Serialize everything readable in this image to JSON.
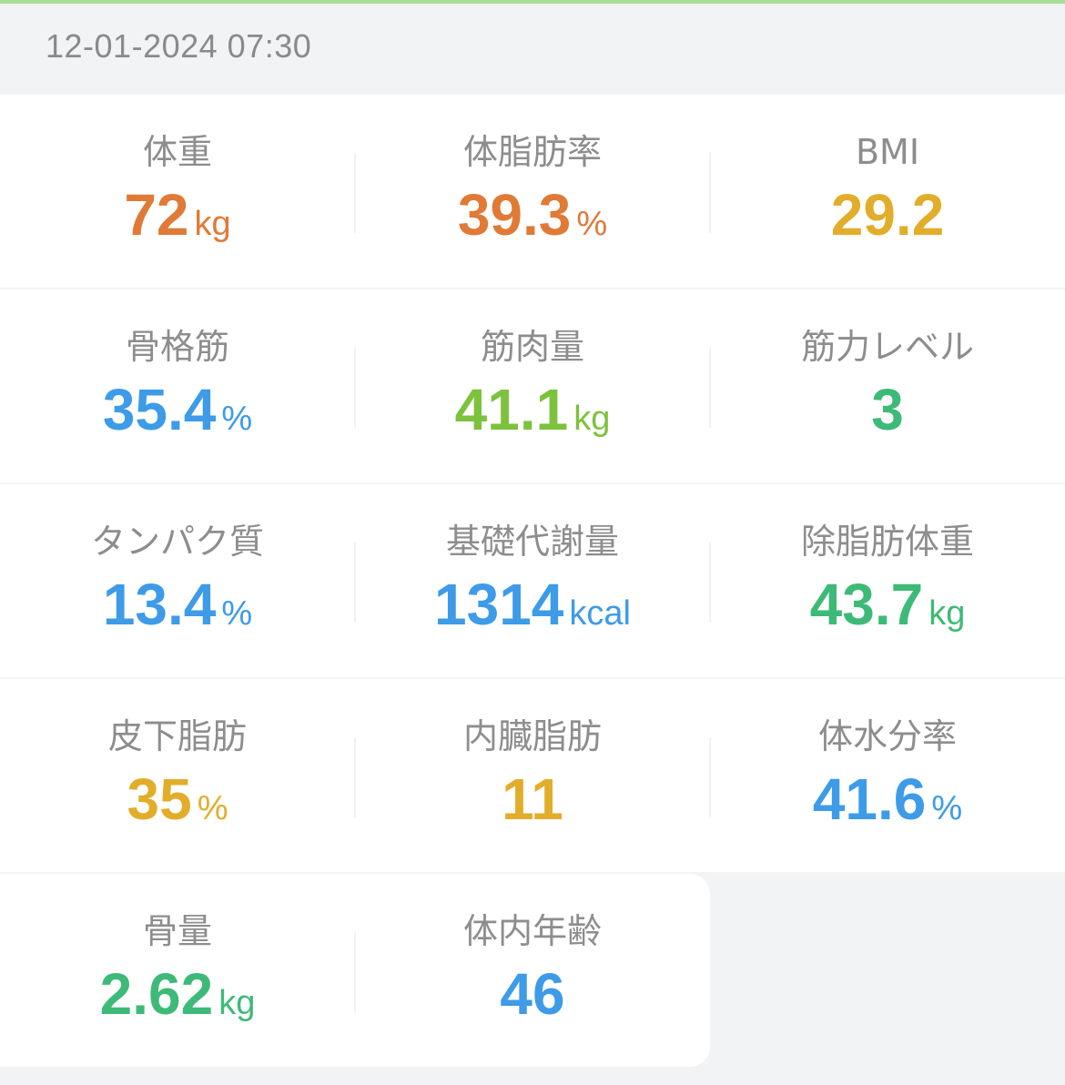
{
  "header": {
    "timestamp": "12-01-2024 07:30"
  },
  "colors": {
    "orange": "#e07a36",
    "amber": "#e2ad2a",
    "blue": "#3d9be8",
    "light_green": "#7cc23c",
    "green": "#3dba77",
    "accent_bar": "#a8dd92"
  },
  "metrics": [
    [
      {
        "label": "体重",
        "value": "72",
        "unit": "kg",
        "color": "orange"
      },
      {
        "label": "体脂肪率",
        "value": "39.3",
        "unit": "%",
        "color": "orange"
      },
      {
        "label": "BMI",
        "value": "29.2",
        "unit": "",
        "color": "amber"
      }
    ],
    [
      {
        "label": "骨格筋",
        "value": "35.4",
        "unit": "%",
        "color": "blue"
      },
      {
        "label": "筋肉量",
        "value": "41.1",
        "unit": "kg",
        "color": "light_green"
      },
      {
        "label": "筋力レベル",
        "value": "3",
        "unit": "",
        "color": "green"
      }
    ],
    [
      {
        "label": "タンパク質",
        "value": "13.4",
        "unit": "%",
        "color": "blue"
      },
      {
        "label": "基礎代謝量",
        "value": "1314",
        "unit": "kcal",
        "color": "blue"
      },
      {
        "label": "除脂肪体重",
        "value": "43.7",
        "unit": "kg",
        "color": "green"
      }
    ],
    [
      {
        "label": "皮下脂肪",
        "value": "35",
        "unit": "%",
        "color": "amber"
      },
      {
        "label": "内臓脂肪",
        "value": "11",
        "unit": "",
        "color": "amber"
      },
      {
        "label": "体水分率",
        "value": "41.6",
        "unit": "%",
        "color": "blue"
      }
    ],
    [
      {
        "label": "骨量",
        "value": "2.62",
        "unit": "kg",
        "color": "green"
      },
      {
        "label": "体内年齢",
        "value": "46",
        "unit": "",
        "color": "blue"
      }
    ]
  ]
}
